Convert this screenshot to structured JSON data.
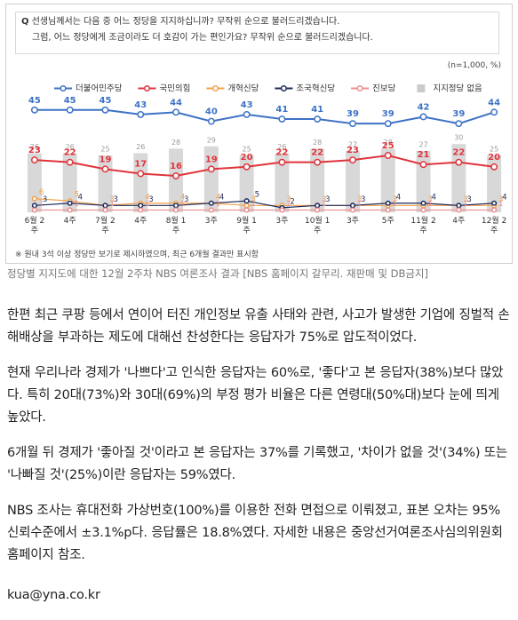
{
  "chart_data": {
    "type": "line",
    "question": [
      "선생님께서는 다음 중 어느 정당을 지지하십니까? 무작위 순으로 불러드리겠습니다.",
      "그럼, 어느 정당에게 조금이라도 더 호감이 가는 편인가요? 무작위 순으로 불러드리겠습니다."
    ],
    "question_mark": "Q",
    "unit_note": "(n=1,000, %)",
    "footnote": "※ 원내 3석 이상 정당만 보기로 제시하였으며, 최근 6개월 결과만 표시함",
    "categories": [
      "6월 2주",
      "4주",
      "7월 2주",
      "4주",
      "8월 1주",
      "3주",
      "9월 1주",
      "3주",
      "10월 1주",
      "3주",
      "5주",
      "11월 2주",
      "4주",
      "12월 2주"
    ],
    "ylim": [
      0,
      50
    ],
    "series": [
      {
        "name": "더불어민주당",
        "color": "#3d72c6",
        "values": [
          45,
          45,
          45,
          43,
          44,
          40,
          43,
          41,
          41,
          39,
          39,
          42,
          39,
          44
        ]
      },
      {
        "name": "국민의힘",
        "color": "#e0343c",
        "values": [
          23,
          22,
          19,
          17,
          16,
          19,
          20,
          22,
          22,
          23,
          25,
          21,
          22,
          20
        ]
      },
      {
        "name": "개혁신당",
        "color": "#f2a04a",
        "values": [
          6,
          5,
          3,
          4,
          4,
          4,
          3,
          3,
          3,
          3,
          3,
          3,
          3,
          3
        ]
      },
      {
        "name": "조국혁신당",
        "color": "#1d2b5c",
        "values": [
          3,
          4,
          3,
          3,
          3,
          4,
          5,
          2,
          3,
          3,
          4,
          4,
          3,
          4
        ]
      },
      {
        "name": "진보당",
        "color": "#f08e8e",
        "values": [
          1,
          1,
          1,
          1,
          1,
          1,
          1,
          1,
          1,
          1,
          1,
          1,
          1,
          1
        ]
      },
      {
        "name": "지지정당 없음",
        "color": "#cbcbcb",
        "kind": "bar",
        "values": [
          26,
          26,
          25,
          26,
          28,
          29,
          25,
          26,
          28,
          27,
          28,
          27,
          30,
          25
        ]
      }
    ]
  },
  "caption": "정당별 지지도에 대한 12월 2주차 NBS 여론조사 결과 [NBS 홈페이지 갈무리. 재판매 및 DB금지]",
  "article": {
    "paragraphs": [
      "한편 최근 쿠팡 등에서 연이어 터진 개인정보 유출 사태와 관련, 사고가 발생한 기업에 징벌적 손해배상을 부과하는 제도에 대해선 찬성한다는 응답자가 75%로 압도적이었다.",
      "현재 우리나라 경제가 '나쁘다'고 인식한 응답자는 60%로, '좋다'고 본 응답자(38%)보다 많았다. 특히 20대(73%)와 30대(69%)의 부정 평가 비율은 다른 연령대(50%대)보다 눈에 띄게 높았다.",
      "6개월 뒤 경제가 '좋아질 것'이라고 본 응답자는 37%를 기록했고, '차이가 없을 것'(34%) 또는 '나빠질 것'(25%)이란 응답자는 59%였다.",
      "NBS 조사는 휴대전화 가상번호(100%)를 이용한 전화 면접으로 이뤄졌고, 표본 오차는 95% 신뢰수준에서 ±3.1%p다. 응답률은 18.8%였다. 자세한 내용은 중앙선거여론조사심의위원회 홈페이지 참조."
    ],
    "email": "kua@yna.co.kr"
  }
}
